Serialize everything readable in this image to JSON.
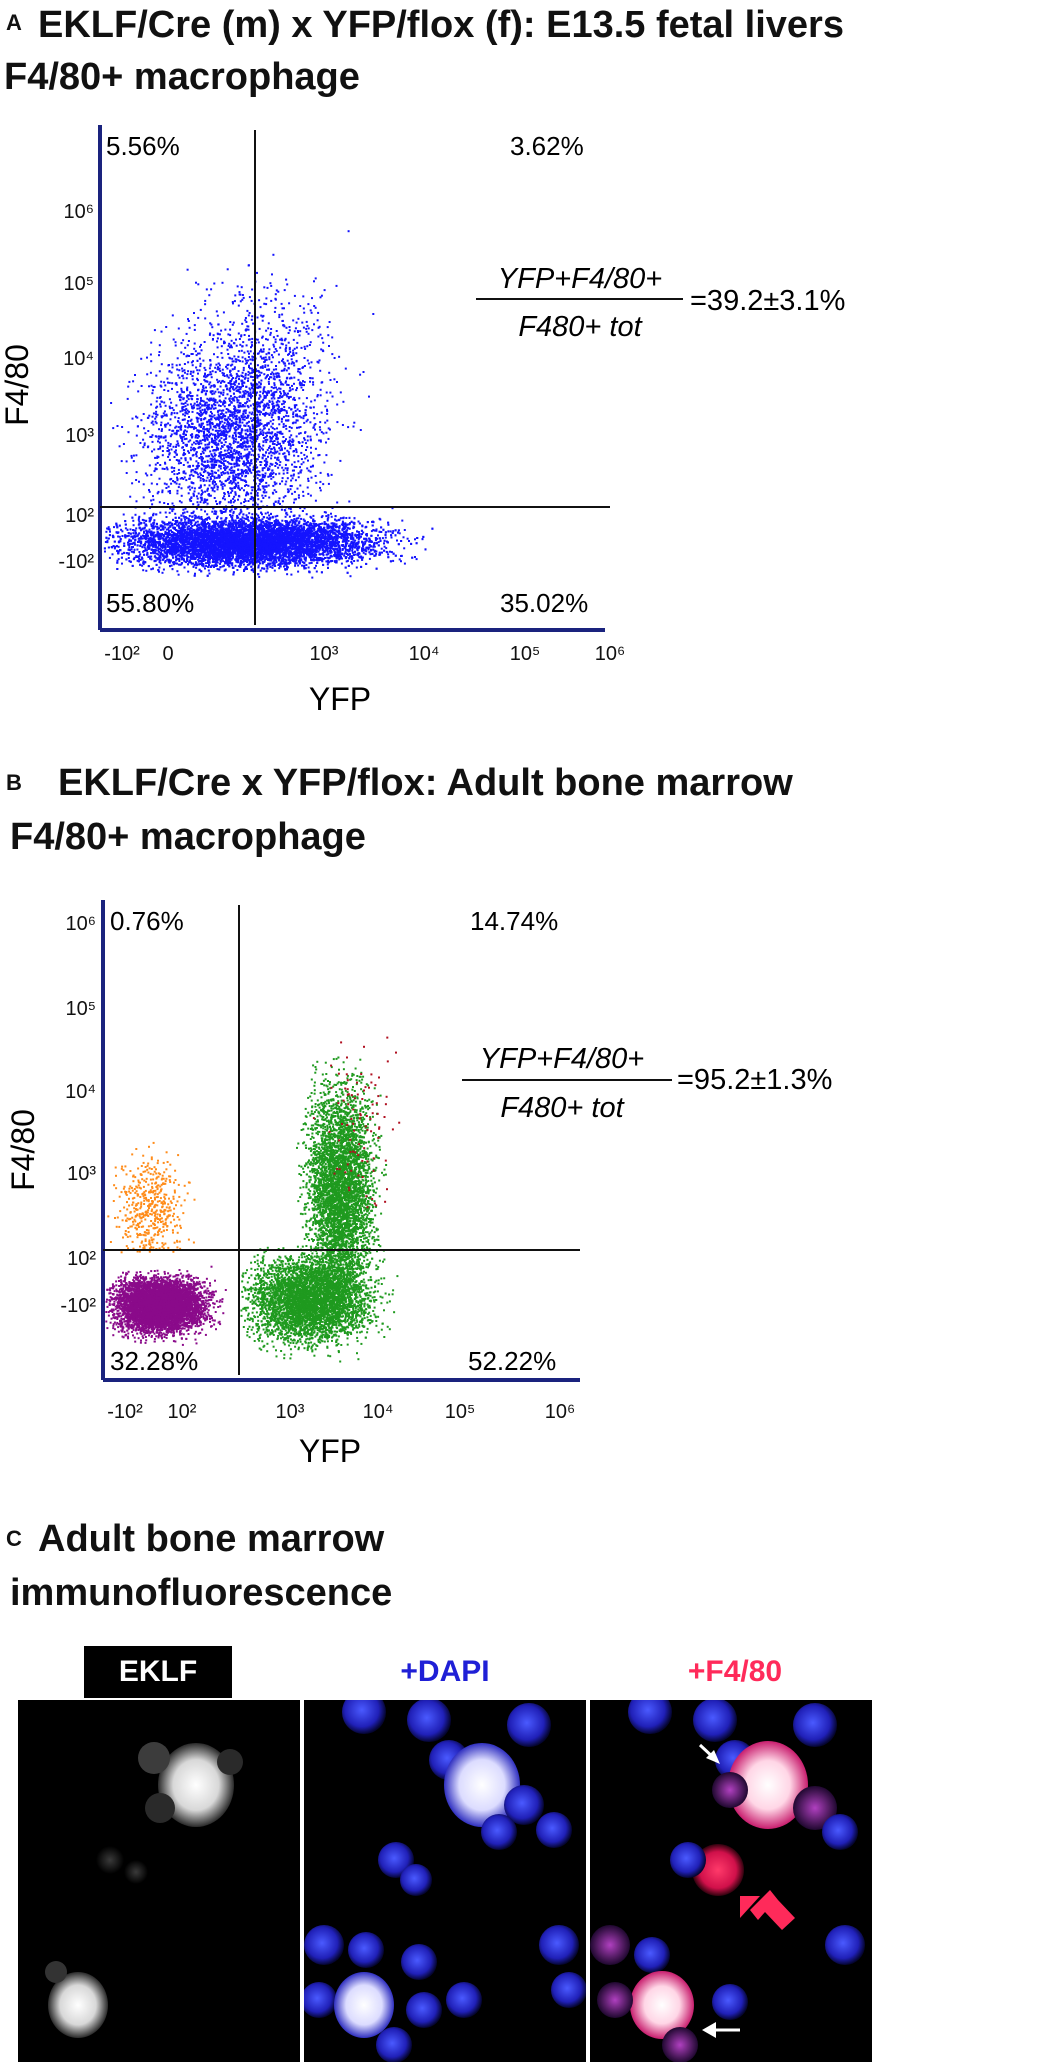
{
  "panel_a": {
    "letter": "A",
    "title": "EKLF/Cre (m) x YFP/flox (f): E13.5 fetal livers",
    "subtitle": "F4/80+ macrophage"
  },
  "panel_b": {
    "letter": "B",
    "title": "EKLF/Cre x YFP/flox: Adult bone marrow",
    "subtitle": "F4/80+ macrophage"
  },
  "panel_c": {
    "letter": "C",
    "title": "Adult bone marrow",
    "subtitle": "immunofluorescence",
    "images": [
      {
        "label": "EKLF",
        "label_color": "#ffffff",
        "label_bg": "#000000"
      },
      {
        "label": "+DAPI",
        "label_color": "#1f1fd6",
        "label_bg": "#ffffff"
      },
      {
        "label": "+F4/80",
        "label_color": "#ff2a5a",
        "label_bg": "#ffffff"
      }
    ]
  },
  "chart_data": [
    {
      "type": "scatter",
      "title": "EKLF/Cre (m) x YFP/flox (f): E13.5 fetal livers",
      "subtitle": "F4/80+ macrophage",
      "xlabel": "YFP",
      "ylabel": "F4/80",
      "x_ticks": [
        "-10²",
        "0",
        "10³",
        "10⁴",
        "10⁵",
        "10⁶"
      ],
      "y_ticks": [
        "-10²",
        "10²",
        "10³",
        "10⁴",
        "10⁵",
        "10⁶"
      ],
      "quadrants": {
        "upper_left": "5.56%",
        "upper_right": "3.62%",
        "lower_left": "55.80%",
        "lower_right": "35.02%"
      },
      "annotation": {
        "numerator": "YFP+F4/80+",
        "denominator": "F480+ tot",
        "value": "=39.2±3.1%"
      },
      "series_colors": [
        "#1414ff"
      ]
    },
    {
      "type": "scatter",
      "title": "EKLF/Cre x YFP/flox: Adult bone marrow",
      "subtitle": "F4/80+ macrophage",
      "xlabel": "YFP",
      "ylabel": "F4/80",
      "x_ticks": [
        "-10²",
        "10²",
        "10³",
        "10⁴",
        "10⁵",
        "10⁶"
      ],
      "y_ticks": [
        "-10²",
        "10²",
        "10³",
        "10⁴",
        "10⁵",
        "10⁶"
      ],
      "quadrants": {
        "upper_left": "0.76%",
        "upper_right": "14.74%",
        "lower_left": "32.28%",
        "lower_right": "52.22%"
      },
      "annotation": {
        "numerator": "YFP+F4/80+",
        "denominator": "F480+ tot",
        "value": "=95.2±1.3%"
      },
      "series_colors": [
        "#8a0a8a",
        "#ff8c1a",
        "#1f9a1f",
        "#b01020"
      ]
    }
  ]
}
